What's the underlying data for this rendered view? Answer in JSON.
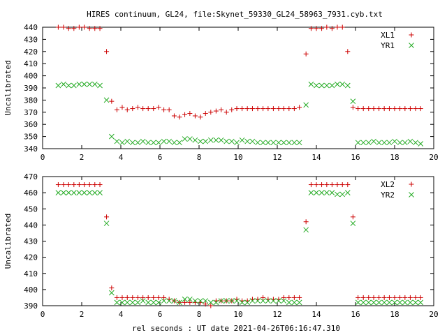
{
  "title": "HIRES continuum, GL24, file:Skynet_59330_GL24_58963_7931.cyb.txt",
  "xlabel": "rel seconds : UT date 2021-04-26T06:16:47.310",
  "colors": {
    "series_plus": "#cc0000",
    "series_x": "#22aa22",
    "axis": "#000000"
  },
  "chart_data": [
    {
      "type": "scatter",
      "ylabel": "Uncalibrated",
      "xlim": [
        0,
        20
      ],
      "ylim": [
        340,
        440
      ],
      "xticks": [
        0,
        2,
        4,
        6,
        8,
        10,
        12,
        14,
        16,
        18,
        20
      ],
      "yticks": [
        340,
        350,
        360,
        370,
        380,
        390,
        400,
        410,
        420,
        430,
        440
      ],
      "legend_position": "top-right",
      "series": [
        {
          "name": "XL1",
          "marker": "plus",
          "x": [
            0.8,
            1.07,
            1.33,
            1.6,
            1.87,
            2.13,
            2.4,
            2.67,
            2.93,
            3.27,
            3.53,
            3.8,
            4.07,
            4.33,
            4.6,
            4.87,
            5.13,
            5.4,
            5.67,
            5.93,
            6.2,
            6.47,
            6.73,
            7.0,
            7.27,
            7.53,
            7.8,
            8.07,
            8.33,
            8.6,
            8.87,
            9.13,
            9.4,
            9.67,
            9.93,
            10.2,
            10.47,
            10.73,
            11.0,
            11.27,
            11.53,
            11.8,
            12.07,
            12.33,
            12.6,
            12.87,
            13.13,
            13.47,
            13.73,
            14.0,
            14.27,
            14.53,
            14.8,
            15.07,
            15.33,
            15.6,
            15.87,
            16.13,
            16.4,
            16.67,
            16.93,
            17.2,
            17.47,
            17.73,
            18.0,
            18.27,
            18.53,
            18.8,
            19.07,
            19.33
          ],
          "y": [
            440,
            440,
            439,
            439,
            440,
            440,
            439,
            439,
            439,
            420,
            379,
            372,
            374,
            372,
            373,
            374,
            373,
            373,
            373,
            374,
            372,
            372,
            367,
            366,
            368,
            369,
            367,
            366,
            369,
            370,
            371,
            372,
            370,
            372,
            373,
            373,
            373,
            373,
            373,
            373,
            373,
            373,
            373,
            373,
            373,
            373,
            374,
            418,
            439,
            439,
            439,
            440,
            439,
            440,
            440,
            420,
            374,
            373,
            373,
            373,
            373,
            373,
            373,
            373,
            373,
            373,
            373,
            373,
            373,
            373
          ]
        },
        {
          "name": "YR1",
          "marker": "cross",
          "x": [
            0.8,
            1.07,
            1.33,
            1.6,
            1.87,
            2.13,
            2.4,
            2.67,
            2.93,
            3.27,
            3.53,
            3.8,
            4.07,
            4.33,
            4.6,
            4.87,
            5.13,
            5.4,
            5.67,
            5.93,
            6.2,
            6.47,
            6.73,
            7.0,
            7.27,
            7.53,
            7.8,
            8.07,
            8.33,
            8.6,
            8.87,
            9.13,
            9.4,
            9.67,
            9.93,
            10.2,
            10.47,
            10.73,
            11.0,
            11.27,
            11.53,
            11.8,
            12.07,
            12.33,
            12.6,
            12.87,
            13.13,
            13.47,
            13.73,
            14.0,
            14.27,
            14.53,
            14.8,
            15.07,
            15.33,
            15.6,
            15.87,
            16.13,
            16.4,
            16.67,
            16.93,
            17.2,
            17.47,
            17.73,
            18.0,
            18.27,
            18.53,
            18.8,
            19.07,
            19.33
          ],
          "y": [
            392,
            393,
            392,
            392,
            393,
            393,
            393,
            393,
            392,
            380,
            350,
            346,
            345,
            346,
            345,
            345,
            346,
            345,
            345,
            345,
            346,
            346,
            345,
            345,
            348,
            348,
            347,
            346,
            346,
            347,
            347,
            347,
            346,
            346,
            345,
            347,
            346,
            346,
            345,
            345,
            345,
            345,
            345,
            345,
            345,
            345,
            345,
            376,
            393,
            392,
            392,
            392,
            392,
            393,
            393,
            392,
            379,
            345,
            345,
            345,
            346,
            345,
            345,
            345,
            346,
            345,
            345,
            346,
            345,
            344
          ]
        }
      ]
    },
    {
      "type": "scatter",
      "ylabel": "Uncalibrated",
      "xlim": [
        0,
        20
      ],
      "ylim": [
        390,
        470
      ],
      "xticks": [
        0,
        2,
        4,
        6,
        8,
        10,
        12,
        14,
        16,
        18,
        20
      ],
      "yticks": [
        390,
        400,
        410,
        420,
        430,
        440,
        450,
        460,
        470
      ],
      "legend_position": "top-right",
      "series": [
        {
          "name": "XL2",
          "marker": "plus",
          "x": [
            0.8,
            1.07,
            1.33,
            1.6,
            1.87,
            2.13,
            2.4,
            2.67,
            2.93,
            3.27,
            3.53,
            3.8,
            4.07,
            4.33,
            4.6,
            4.87,
            5.13,
            5.4,
            5.67,
            5.93,
            6.2,
            6.47,
            6.73,
            7.0,
            7.27,
            7.53,
            7.8,
            8.07,
            8.33,
            8.6,
            8.87,
            9.13,
            9.4,
            9.67,
            9.93,
            10.2,
            10.47,
            10.73,
            11.0,
            11.27,
            11.53,
            11.8,
            12.07,
            12.33,
            12.6,
            12.87,
            13.13,
            13.47,
            13.73,
            14.0,
            14.27,
            14.53,
            14.8,
            15.07,
            15.33,
            15.6,
            15.87,
            16.13,
            16.4,
            16.67,
            16.93,
            17.2,
            17.47,
            17.73,
            18.0,
            18.27,
            18.53,
            18.8,
            19.07,
            19.33
          ],
          "y": [
            465,
            465,
            465,
            465,
            465,
            465,
            465,
            465,
            465,
            445,
            401,
            395,
            395,
            395,
            395,
            395,
            395,
            395,
            395,
            395,
            395,
            394,
            393,
            392,
            392,
            392,
            392,
            392,
            391,
            390,
            393,
            393,
            393,
            393,
            394,
            393,
            393,
            394,
            394,
            395,
            394,
            394,
            394,
            395,
            395,
            395,
            395,
            442,
            465,
            465,
            465,
            465,
            465,
            465,
            465,
            465,
            445,
            395,
            395,
            395,
            395,
            395,
            395,
            395,
            395,
            395,
            395,
            395,
            395,
            395
          ]
        },
        {
          "name": "YR2",
          "marker": "cross",
          "x": [
            0.8,
            1.07,
            1.33,
            1.6,
            1.87,
            2.13,
            2.4,
            2.67,
            2.93,
            3.27,
            3.53,
            3.8,
            4.07,
            4.33,
            4.6,
            4.87,
            5.13,
            5.4,
            5.67,
            5.93,
            6.2,
            6.47,
            6.73,
            7.0,
            7.27,
            7.53,
            7.8,
            8.07,
            8.33,
            8.6,
            8.87,
            9.13,
            9.4,
            9.67,
            9.93,
            10.2,
            10.47,
            10.73,
            11.0,
            11.27,
            11.53,
            11.8,
            12.07,
            12.33,
            12.6,
            12.87,
            13.13,
            13.47,
            13.73,
            14.0,
            14.27,
            14.53,
            14.8,
            15.07,
            15.33,
            15.6,
            15.87,
            16.13,
            16.4,
            16.67,
            16.93,
            17.2,
            17.47,
            17.73,
            18.0,
            18.27,
            18.53,
            18.8,
            19.07,
            19.33
          ],
          "y": [
            460,
            460,
            460,
            460,
            460,
            460,
            460,
            460,
            460,
            441,
            398,
            392,
            392,
            392,
            392,
            392,
            393,
            392,
            392,
            392,
            393,
            393,
            393,
            392,
            394,
            394,
            393,
            393,
            393,
            392,
            392,
            393,
            393,
            393,
            393,
            392,
            392,
            393,
            393,
            393,
            393,
            393,
            393,
            393,
            392,
            392,
            392,
            437,
            460,
            460,
            460,
            460,
            460,
            459,
            459,
            460,
            441,
            392,
            392,
            392,
            392,
            392,
            392,
            392,
            392,
            392,
            392,
            392,
            392,
            392
          ]
        }
      ]
    }
  ]
}
